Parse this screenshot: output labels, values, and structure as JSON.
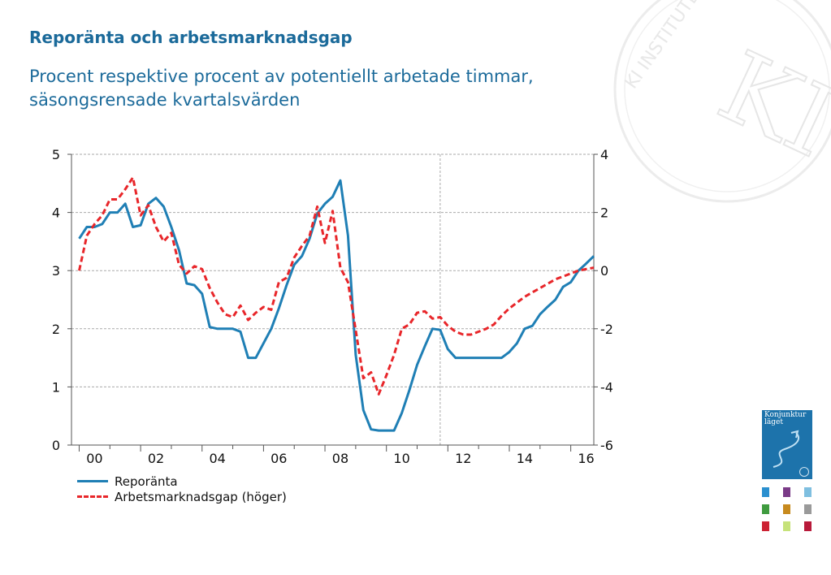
{
  "title": "Reporänta och arbetsmarknadsgap",
  "subtitle": "Procent respektive procent av potentiellt arbetade timmar, säsongsrensade kvartalsvärden",
  "watermark_text": "KI INSTITUTET",
  "thumbnail": {
    "title": "Konjunktur läget",
    "color": "#1d73ab"
  },
  "mini_swatch_colors": [
    "#2a8fcf",
    "#7a3b87",
    "#7fbfe0",
    "#3f9b3f",
    "#c78a1e",
    "#9a9a9a",
    "#cc2233",
    "#c6e27a",
    "#b81a3a"
  ],
  "colors": {
    "repo": "#1f7fb5",
    "gap": "#e8262a",
    "axis": "#555555",
    "grid": "#aaaaaa"
  },
  "chart_data": {
    "type": "line",
    "x_tick_labels": [
      "00",
      "02",
      "04",
      "06",
      "08",
      "10",
      "12",
      "14",
      "16"
    ],
    "x_tick_years": [
      2000,
      2002,
      2004,
      2006,
      2008,
      2010,
      2012,
      2014,
      2016
    ],
    "x_range": [
      1999.75,
      2016.75
    ],
    "forecast_divider_year": 2011.75,
    "y_left": {
      "ticks": [
        0,
        1,
        2,
        3,
        4,
        5
      ],
      "range": [
        0,
        5
      ]
    },
    "y_right": {
      "ticks": [
        -6,
        -4,
        -2,
        0,
        2,
        4
      ],
      "range": [
        -6,
        4
      ]
    },
    "grid": true,
    "series": [
      {
        "name": "Reporänta",
        "axis": "left",
        "style": "solid",
        "points": [
          [
            2000.0,
            3.55
          ],
          [
            2000.25,
            3.75
          ],
          [
            2000.5,
            3.75
          ],
          [
            2000.75,
            3.8
          ],
          [
            2001.0,
            4.0
          ],
          [
            2001.25,
            4.0
          ],
          [
            2001.5,
            4.15
          ],
          [
            2001.75,
            3.75
          ],
          [
            2002.0,
            3.78
          ],
          [
            2002.25,
            4.15
          ],
          [
            2002.5,
            4.25
          ],
          [
            2002.75,
            4.1
          ],
          [
            2003.0,
            3.75
          ],
          [
            2003.25,
            3.35
          ],
          [
            2003.5,
            2.78
          ],
          [
            2003.75,
            2.75
          ],
          [
            2004.0,
            2.6
          ],
          [
            2004.25,
            2.03
          ],
          [
            2004.5,
            2.0
          ],
          [
            2004.75,
            2.0
          ],
          [
            2005.0,
            2.0
          ],
          [
            2005.25,
            1.95
          ],
          [
            2005.5,
            1.5
          ],
          [
            2005.75,
            1.5
          ],
          [
            2006.0,
            1.75
          ],
          [
            2006.25,
            2.0
          ],
          [
            2006.5,
            2.35
          ],
          [
            2006.75,
            2.75
          ],
          [
            2007.0,
            3.1
          ],
          [
            2007.25,
            3.25
          ],
          [
            2007.5,
            3.55
          ],
          [
            2007.75,
            3.98
          ],
          [
            2008.0,
            4.15
          ],
          [
            2008.25,
            4.27
          ],
          [
            2008.5,
            4.55
          ],
          [
            2008.75,
            3.6
          ],
          [
            2009.0,
            1.55
          ],
          [
            2009.25,
            0.6
          ],
          [
            2009.5,
            0.27
          ],
          [
            2009.75,
            0.25
          ],
          [
            2010.0,
            0.25
          ],
          [
            2010.25,
            0.25
          ],
          [
            2010.5,
            0.55
          ],
          [
            2010.75,
            0.95
          ],
          [
            2011.0,
            1.38
          ],
          [
            2011.25,
            1.7
          ],
          [
            2011.5,
            2.0
          ],
          [
            2011.75,
            1.98
          ],
          [
            2012.0,
            1.65
          ],
          [
            2012.25,
            1.5
          ],
          [
            2012.5,
            1.5
          ],
          [
            2012.75,
            1.5
          ],
          [
            2013.0,
            1.5
          ],
          [
            2013.25,
            1.5
          ],
          [
            2013.5,
            1.5
          ],
          [
            2013.75,
            1.5
          ],
          [
            2014.0,
            1.6
          ],
          [
            2014.25,
            1.75
          ],
          [
            2014.5,
            2.0
          ],
          [
            2014.75,
            2.05
          ],
          [
            2015.0,
            2.25
          ],
          [
            2015.25,
            2.38
          ],
          [
            2015.5,
            2.5
          ],
          [
            2015.75,
            2.72
          ],
          [
            2016.0,
            2.8
          ],
          [
            2016.25,
            3.0
          ],
          [
            2016.5,
            3.12
          ],
          [
            2016.75,
            3.25
          ]
        ]
      },
      {
        "name": "Arbetsmarknadsgap (höger)",
        "axis": "right",
        "style": "dashed",
        "points": [
          [
            2000.0,
            0.0
          ],
          [
            2000.25,
            1.2
          ],
          [
            2000.5,
            1.6
          ],
          [
            2000.75,
            1.9
          ],
          [
            2001.0,
            2.45
          ],
          [
            2001.25,
            2.45
          ],
          [
            2001.5,
            2.8
          ],
          [
            2001.75,
            3.2
          ],
          [
            2002.0,
            1.9
          ],
          [
            2002.25,
            2.25
          ],
          [
            2002.5,
            1.5
          ],
          [
            2002.75,
            1.0
          ],
          [
            2003.0,
            1.3
          ],
          [
            2003.25,
            0.2
          ],
          [
            2003.5,
            -0.1
          ],
          [
            2003.75,
            0.15
          ],
          [
            2004.0,
            0.05
          ],
          [
            2004.25,
            -0.6
          ],
          [
            2004.5,
            -1.1
          ],
          [
            2004.75,
            -1.5
          ],
          [
            2005.0,
            -1.6
          ],
          [
            2005.25,
            -1.2
          ],
          [
            2005.5,
            -1.7
          ],
          [
            2005.75,
            -1.45
          ],
          [
            2006.0,
            -1.25
          ],
          [
            2006.25,
            -1.35
          ],
          [
            2006.5,
            -0.4
          ],
          [
            2006.75,
            -0.25
          ],
          [
            2007.0,
            0.45
          ],
          [
            2007.25,
            0.85
          ],
          [
            2007.5,
            1.2
          ],
          [
            2007.75,
            2.2
          ],
          [
            2008.0,
            0.95
          ],
          [
            2008.25,
            2.05
          ],
          [
            2008.5,
            0.1
          ],
          [
            2008.75,
            -0.4
          ],
          [
            2009.0,
            -2.05
          ],
          [
            2009.25,
            -3.7
          ],
          [
            2009.5,
            -3.5
          ],
          [
            2009.75,
            -4.25
          ],
          [
            2010.0,
            -3.6
          ],
          [
            2010.25,
            -2.9
          ],
          [
            2010.5,
            -2.0
          ],
          [
            2010.75,
            -1.85
          ],
          [
            2011.0,
            -1.45
          ],
          [
            2011.25,
            -1.4
          ],
          [
            2011.5,
            -1.65
          ],
          [
            2011.75,
            -1.6
          ],
          [
            2012.0,
            -1.9
          ],
          [
            2012.25,
            -2.1
          ],
          [
            2012.5,
            -2.2
          ],
          [
            2012.75,
            -2.2
          ],
          [
            2013.0,
            -2.1
          ],
          [
            2013.25,
            -2.0
          ],
          [
            2013.5,
            -1.85
          ],
          [
            2013.75,
            -1.55
          ],
          [
            2014.0,
            -1.3
          ],
          [
            2014.25,
            -1.1
          ],
          [
            2014.5,
            -0.9
          ],
          [
            2014.75,
            -0.75
          ],
          [
            2015.0,
            -0.6
          ],
          [
            2015.25,
            -0.45
          ],
          [
            2015.5,
            -0.3
          ],
          [
            2015.75,
            -0.2
          ],
          [
            2016.0,
            -0.1
          ],
          [
            2016.25,
            0.0
          ],
          [
            2016.5,
            0.05
          ],
          [
            2016.75,
            0.1
          ]
        ]
      }
    ]
  }
}
